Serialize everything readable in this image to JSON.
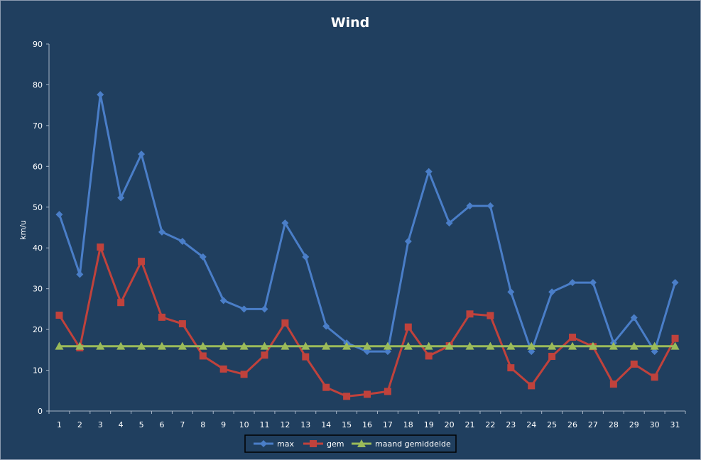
{
  "chart_data": {
    "type": "line",
    "title": "Wind",
    "xlabel": "",
    "ylabel": "km/u",
    "ylim": [
      0,
      90
    ],
    "yticks": [
      0,
      10,
      20,
      30,
      40,
      50,
      60,
      70,
      80,
      90
    ],
    "categories": [
      "1",
      "2",
      "3",
      "4",
      "5",
      "6",
      "7",
      "8",
      "9",
      "10",
      "11",
      "12",
      "13",
      "14",
      "15",
      "16",
      "17",
      "18",
      "19",
      "20",
      "21",
      "22",
      "23",
      "24",
      "25",
      "26",
      "27",
      "28",
      "29",
      "30",
      "31"
    ],
    "grid": false,
    "legend_position": "bottom",
    "background": "#203f5f",
    "series": [
      {
        "name": "max",
        "color": "#4a7ec8",
        "marker": "diamond",
        "values": [
          48.2,
          33.5,
          77.6,
          52.3,
          63.0,
          43.9,
          41.6,
          37.8,
          27.1,
          25.0,
          25.0,
          46.1,
          37.8,
          20.8,
          16.7,
          14.6,
          14.6,
          41.6,
          58.7,
          46.1,
          50.3,
          50.3,
          29.2,
          14.6,
          29.2,
          31.5,
          31.5,
          16.7,
          22.9,
          14.6,
          31.5
        ]
      },
      {
        "name": "gem",
        "color": "#c0423c",
        "marker": "square",
        "values": [
          23.5,
          15.5,
          40.2,
          26.6,
          36.7,
          23.0,
          21.4,
          13.5,
          10.3,
          9.0,
          13.7,
          21.6,
          13.3,
          5.8,
          3.6,
          4.1,
          4.8,
          20.6,
          13.5,
          16.0,
          23.8,
          23.4,
          10.6,
          6.2,
          13.4,
          18.1,
          15.8,
          6.6,
          11.5,
          8.3,
          17.8
        ]
      },
      {
        "name": "maand gemiddelde",
        "color": "#9bbb59",
        "marker": "triangle",
        "values": [
          15.9,
          15.9,
          15.9,
          15.9,
          15.9,
          15.9,
          15.9,
          15.9,
          15.9,
          15.9,
          15.9,
          15.9,
          15.9,
          15.9,
          15.9,
          15.9,
          15.9,
          15.9,
          15.9,
          15.9,
          15.9,
          15.9,
          15.9,
          15.9,
          15.9,
          15.9,
          15.9,
          15.9,
          15.9,
          15.9,
          15.9
        ]
      }
    ]
  }
}
